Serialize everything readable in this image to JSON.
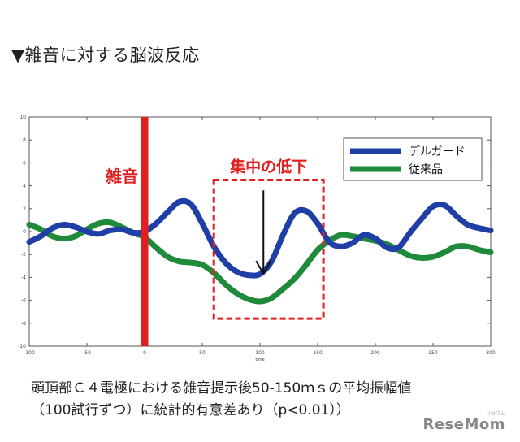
{
  "heading": "▼雑音に対する脳波反応",
  "caption": {
    "line1": "頭頂部Ｃ４電極における雑音提示後50-150ｍｓの平均振幅値",
    "line2": "（100試行ずつ）に統計的有意差あり（p<0.01））"
  },
  "logo": {
    "text": "ReseMom",
    "sub": "リセマム"
  },
  "chart_data": {
    "type": "line",
    "xlabel": "time",
    "ylabel": "",
    "xlim": [
      -100,
      300
    ],
    "ylim": [
      -10,
      10
    ],
    "xticks": [
      -100,
      -50,
      0,
      50,
      100,
      150,
      200,
      250,
      300
    ],
    "yticks": [
      10,
      8,
      6,
      4,
      2,
      0,
      -2,
      -4,
      -6,
      -8,
      -10
    ],
    "grid": false,
    "legend_position": "top-right",
    "series": [
      {
        "name": "デルガード",
        "color": "#1f3fa6",
        "x": [
          -100,
          -90,
          -80,
          -70,
          -60,
          -50,
          -40,
          -30,
          -20,
          -10,
          0,
          10,
          20,
          30,
          40,
          50,
          60,
          70,
          80,
          90,
          100,
          110,
          120,
          130,
          140,
          150,
          160,
          170,
          180,
          190,
          200,
          210,
          220,
          230,
          240,
          250,
          260,
          270,
          280,
          290,
          300
        ],
        "y": [
          -0.9,
          -0.4,
          0.3,
          0.6,
          0.4,
          0.0,
          -0.2,
          0.1,
          0.2,
          -0.1,
          0.0,
          0.7,
          1.7,
          2.6,
          2.4,
          0.7,
          -1.3,
          -2.7,
          -3.5,
          -3.8,
          -3.7,
          -2.6,
          -0.3,
          1.6,
          1.8,
          0.7,
          -0.9,
          -1.3,
          -1.0,
          -0.3,
          -0.6,
          -1.4,
          -1.4,
          -0.1,
          1.1,
          2.2,
          2.3,
          1.4,
          0.6,
          0.3,
          0.1
        ]
      },
      {
        "name": "従来品",
        "color": "#1e8a3a",
        "x": [
          -100,
          -90,
          -80,
          -70,
          -60,
          -50,
          -40,
          -30,
          -20,
          -10,
          0,
          10,
          20,
          30,
          40,
          50,
          60,
          70,
          80,
          90,
          100,
          110,
          120,
          130,
          140,
          150,
          160,
          170,
          180,
          190,
          200,
          210,
          220,
          230,
          240,
          250,
          260,
          270,
          280,
          290,
          300
        ],
        "y": [
          0.6,
          0.2,
          -0.4,
          -0.6,
          -0.4,
          0.2,
          0.7,
          0.8,
          0.4,
          -0.1,
          -0.5,
          -1.4,
          -2.2,
          -2.6,
          -2.7,
          -2.9,
          -3.6,
          -4.6,
          -5.4,
          -5.9,
          -6.1,
          -5.8,
          -5.0,
          -4.1,
          -2.9,
          -1.6,
          -0.8,
          -0.3,
          -0.4,
          -0.6,
          -0.8,
          -1.1,
          -1.6,
          -2.1,
          -2.3,
          -2.2,
          -1.8,
          -1.3,
          -1.3,
          -1.6,
          -1.8
        ]
      }
    ],
    "annotations": {
      "noise_label": "雑音",
      "noise_x": 0,
      "noise_color": "#e02020",
      "focus_label": "集中の低下",
      "focus_color": "#e02020",
      "focus_range_x": [
        60,
        155
      ],
      "focus_range_y": [
        -7.6,
        4.5
      ],
      "arrow_x": 103,
      "arrow_from_y": 3.6,
      "arrow_to_y": -3.7
    }
  }
}
